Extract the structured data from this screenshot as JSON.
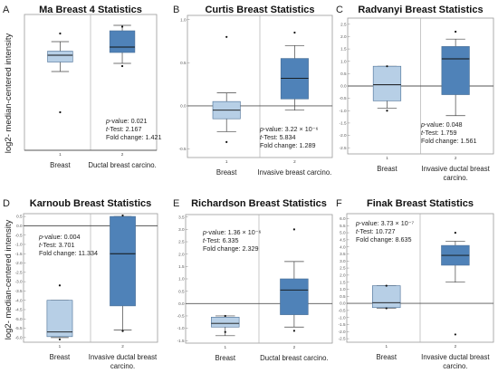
{
  "figure": {
    "ylabel": "log2- median-centered intensity"
  },
  "chart_data": [
    {
      "letter": "A",
      "type": "box",
      "title": "Ma Breast 4 Statistics",
      "categories": [
        "Breast",
        "Ductal breast carcino."
      ],
      "category_index": [
        "1",
        "2"
      ],
      "ylim": [
        0,
        5
      ],
      "yticks": [],
      "baseline": 0,
      "boxes": [
        {
          "color": "#b7cfe6",
          "whisker_low": 2.9,
          "q1": 3.25,
          "median": 3.5,
          "q3": 3.65,
          "whisker_high": 4.0,
          "outliers": [
            4.3,
            1.4
          ]
        },
        {
          "color": "#4f82b8",
          "whisker_low": 3.2,
          "q1": 3.6,
          "median": 3.8,
          "q3": 4.4,
          "whisker_high": 4.6,
          "outliers": [
            4.55,
            3.1
          ]
        }
      ],
      "stats": {
        "p_label": "p",
        "p_value": "-value: 0.021",
        "t_label": "t",
        "t_value": "-Test: 2.167",
        "fold": "Fold change: 1.421"
      }
    },
    {
      "letter": "B",
      "type": "box",
      "title": "Curtis Breast Statistics",
      "categories": [
        "Breast",
        "Invasive breast carcino."
      ],
      "category_index": [
        "1",
        "2"
      ],
      "ylim": [
        -0.6,
        1.05
      ],
      "yticks": [
        "1.0",
        "0.5",
        "0.0",
        "-0.5"
      ],
      "ytick_values": [
        1.0,
        0.5,
        0.0,
        -0.5
      ],
      "baseline": 0,
      "boxes": [
        {
          "color": "#b7cfe6",
          "whisker_low": -0.3,
          "q1": -0.15,
          "median": -0.05,
          "q3": 0.05,
          "whisker_high": 0.15,
          "outliers": [
            0.8,
            -0.42
          ]
        },
        {
          "color": "#4f82b8",
          "whisker_low": -0.05,
          "q1": 0.08,
          "median": 0.32,
          "q3": 0.55,
          "whisker_high": 0.7,
          "outliers": [
            0.85
          ]
        }
      ],
      "stats": {
        "p_label": "p",
        "p_value": "-value: 3.22 × 10⁻⁶",
        "t_label": "t",
        "t_value": "-Test: 5.834",
        "fold": "Fold change: 1.289"
      }
    },
    {
      "letter": "C",
      "type": "box",
      "title": "Radvanyi Breast Statistics",
      "categories": [
        "Breast",
        "Invasive ductal breast carcino."
      ],
      "category_index": [
        "1",
        "2"
      ],
      "ylim": [
        -2.75,
        2.75
      ],
      "yticks": [
        "2.5",
        "2.0",
        "1.5",
        "1.0",
        "0.5",
        "0.0",
        "-0.5",
        "-1.0",
        "-1.5",
        "-2.0",
        "-2.5"
      ],
      "ytick_values": [
        2.5,
        2.0,
        1.5,
        1.0,
        0.5,
        0.0,
        -0.5,
        -1.0,
        -1.5,
        -2.0,
        -2.5
      ],
      "baseline": 0,
      "boxes": [
        {
          "color": "#b7cfe6",
          "whisker_low": -0.9,
          "q1": -0.6,
          "median": 0.05,
          "q3": 0.8,
          "whisker_high": 0.8,
          "outliers": [
            0.8,
            -1.0
          ]
        },
        {
          "color": "#4f82b8",
          "whisker_low": -1.2,
          "q1": -0.35,
          "median": 1.1,
          "q3": 1.6,
          "whisker_high": 1.9,
          "outliers": [
            2.2
          ]
        }
      ],
      "stats": {
        "p_label": "p",
        "p_value": "-value: 0.048",
        "t_label": "t",
        "t_value": "-Test: 1.759",
        "fold": "Fold change: 1.561"
      }
    },
    {
      "letter": "D",
      "type": "box",
      "title": "Karnoub Breast Statistics",
      "categories": [
        "Breast",
        "Invasive ductal breast carcino."
      ],
      "category_index": [
        "1",
        "2"
      ],
      "ylim": [
        -6.25,
        0.65
      ],
      "yticks": [
        "0.5",
        "0.0",
        "-0.5",
        "-1.0",
        "-1.5",
        "-2.0",
        "-2.5",
        "-3.0",
        "-3.5",
        "-4.0",
        "-4.5",
        "-5.0",
        "-5.5",
        "-6.0"
      ],
      "ytick_values": [
        0.5,
        0.0,
        -0.5,
        -1.0,
        -1.5,
        -2.0,
        -2.5,
        -3.0,
        -3.5,
        -4.0,
        -4.5,
        -5.0,
        -5.5,
        -6.0
      ],
      "baseline": 0,
      "boxes": [
        {
          "color": "#b7cfe6",
          "whisker_low": -6.0,
          "q1": -5.95,
          "median": -5.7,
          "q3": -4.0,
          "whisker_high": -4.0,
          "outliers": [
            -3.2,
            -6.1
          ]
        },
        {
          "color": "#4f82b8",
          "whisker_low": -5.6,
          "q1": -4.3,
          "median": -1.5,
          "q3": 0.5,
          "whisker_high": 0.5,
          "outliers": [
            0.55,
            -5.65
          ]
        }
      ],
      "stats": {
        "p_label": "p",
        "p_value": "-value: 0.004",
        "t_label": "t",
        "t_value": "-Test: 3.701",
        "fold": "Fold change: 11.334"
      }
    },
    {
      "letter": "E",
      "type": "box",
      "title": "Richardson Breast Statistics",
      "categories": [
        "Breast",
        "Ductal breast carcino."
      ],
      "category_index": [
        "1",
        "2"
      ],
      "ylim": [
        -1.6,
        3.6
      ],
      "yticks": [
        "3.5",
        "3.0",
        "2.5",
        "2.0",
        "1.5",
        "1.0",
        "0.5",
        "0.0",
        "-0.5",
        "-1.0",
        "-1.5"
      ],
      "ytick_values": [
        3.5,
        3.0,
        2.5,
        2.0,
        1.5,
        1.0,
        0.5,
        0.0,
        -0.5,
        -1.0,
        -1.5
      ],
      "baseline": 0,
      "boxes": [
        {
          "color": "#b7cfe6",
          "whisker_low": -1.3,
          "q1": -0.95,
          "median": -0.8,
          "q3": -0.55,
          "whisker_high": -0.5,
          "outliers": [
            -0.5,
            -1.15
          ]
        },
        {
          "color": "#4f82b8",
          "whisker_low": -0.95,
          "q1": -0.45,
          "median": 0.55,
          "q3": 1.0,
          "whisker_high": 1.7,
          "outliers": [
            3.0,
            -1.1
          ]
        }
      ],
      "stats": {
        "p_label": "p",
        "p_value": "-value: 1.36 × 10⁻⁶",
        "t_label": "t",
        "t_value": "-Test: 6.335",
        "fold": "Fold change: 2.329"
      }
    },
    {
      "letter": "F",
      "type": "box",
      "title": "Finak Breast Statistics",
      "categories": [
        "Breast",
        "Invasive ductal breast carcino."
      ],
      "category_index": [
        "1",
        "2"
      ],
      "ylim": [
        -2.75,
        6.35
      ],
      "yticks": [
        "6.0",
        "5.5",
        "5.0",
        "4.5",
        "4.0",
        "3.5",
        "3.0",
        "2.5",
        "2.0",
        "1.5",
        "1.0",
        "0.5",
        "0.0",
        "-0.5",
        "-1.0",
        "-1.5",
        "-2.0",
        "-2.5"
      ],
      "ytick_values": [
        6.0,
        5.5,
        5.0,
        4.5,
        4.0,
        3.5,
        3.0,
        2.5,
        2.0,
        1.5,
        1.0,
        0.5,
        0.0,
        -0.5,
        -1.0,
        -1.5,
        -2.0,
        -2.5
      ],
      "baseline": 0,
      "boxes": [
        {
          "color": "#b7cfe6",
          "whisker_low": -0.35,
          "q1": -0.3,
          "median": 0.05,
          "q3": 1.25,
          "whisker_high": 1.25,
          "outliers": [
            1.25,
            -0.35
          ]
        },
        {
          "color": "#4f82b8",
          "whisker_low": 1.5,
          "q1": 2.7,
          "median": 3.4,
          "q3": 4.1,
          "whisker_high": 4.4,
          "outliers": [
            5.0,
            -2.2
          ]
        }
      ],
      "stats": {
        "p_label": "p",
        "p_value": "-value: 3.73 × 10⁻⁷",
        "t_label": "t",
        "t_value": "-Test: 10.727",
        "fold": "Fold change: 8.635"
      }
    }
  ]
}
